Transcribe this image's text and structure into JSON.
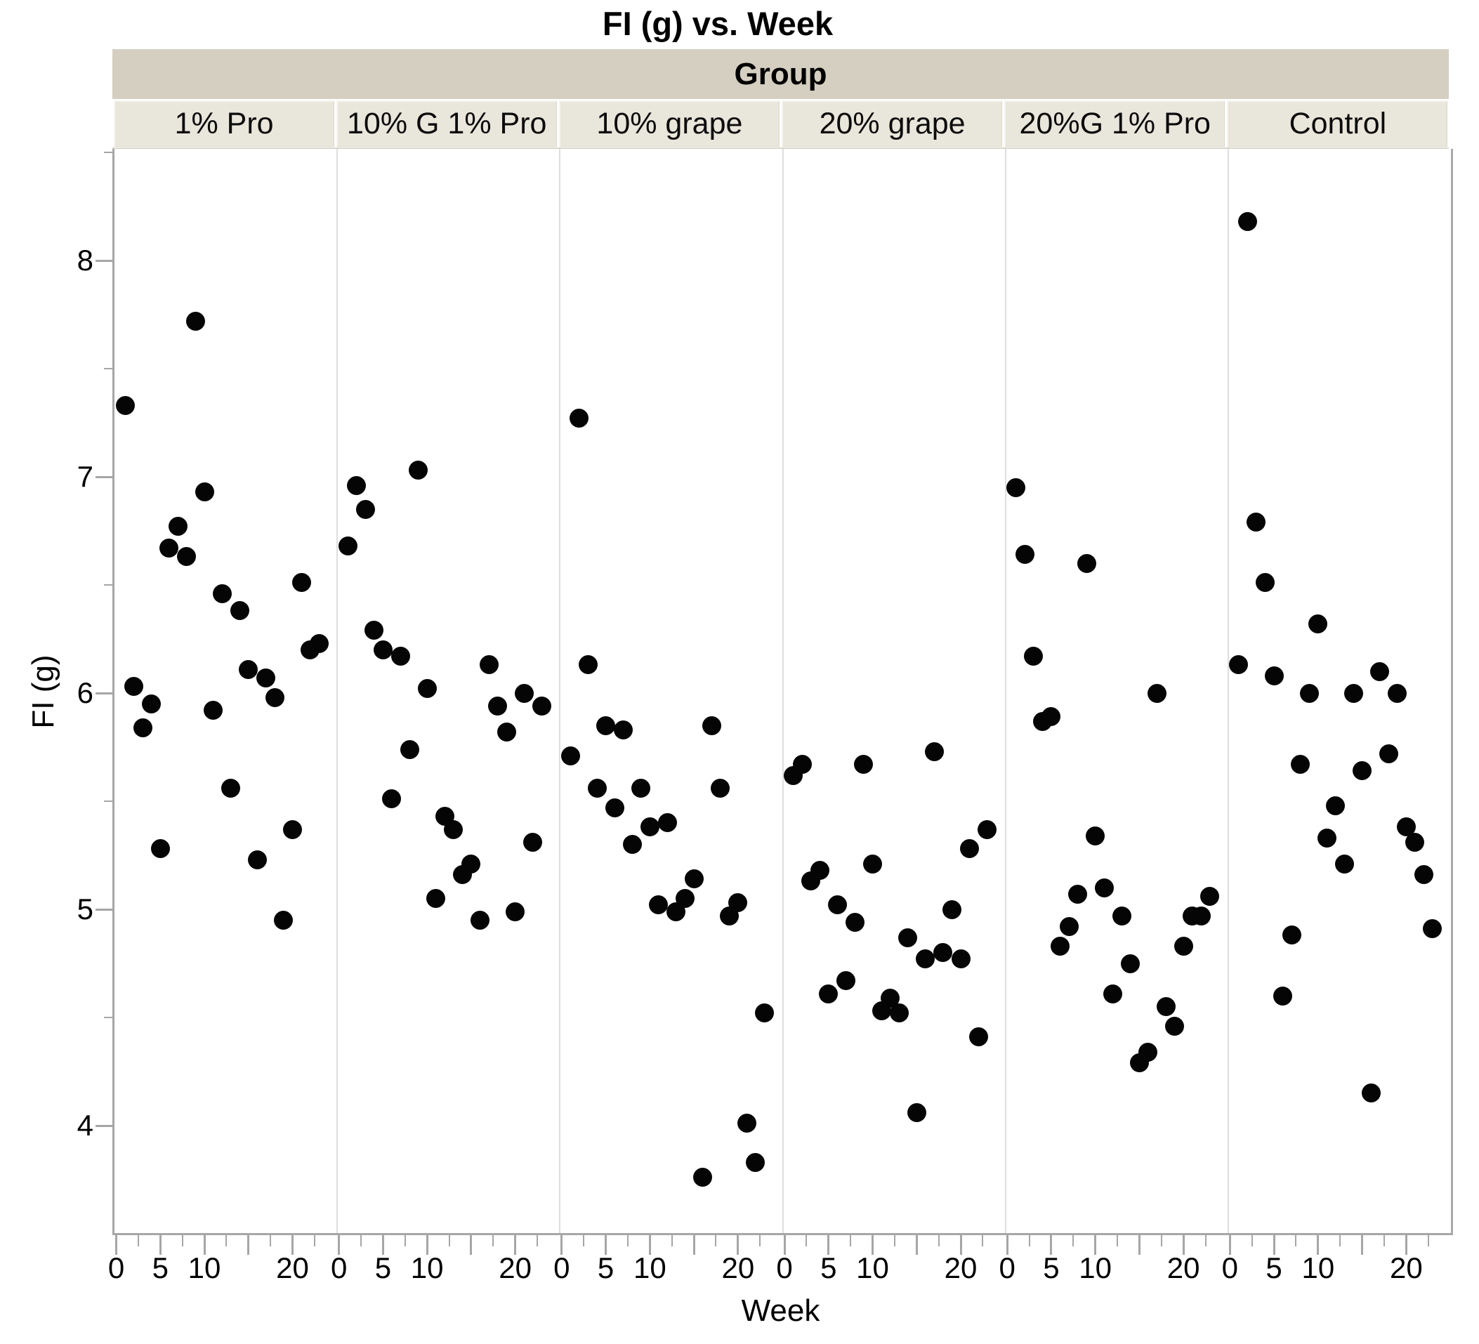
{
  "title": "FI (g) vs. Week",
  "header": {
    "group_label": "Group"
  },
  "axes": {
    "y": {
      "label": "FI (g)",
      "major_ticks": [
        8,
        7,
        6,
        5,
        4
      ],
      "minor_ticks": [
        8.5,
        7.5,
        6.5,
        5.5,
        4.5
      ]
    },
    "x": {
      "label": "Week",
      "major_ticks": [
        0,
        5,
        10,
        15,
        20
      ],
      "labeled_ticks": [
        0,
        5,
        10,
        20
      ],
      "minor_ticks": [
        2.5,
        7.5,
        12.5,
        17.5,
        22.5
      ]
    }
  },
  "colors": {
    "group_band": "#d5cfc1",
    "panel_cell": "#e9e6db",
    "axis_line": "#a6a6a6",
    "panel_separator": "#dedede",
    "marker": "#050505",
    "background": "#ffffff"
  },
  "chart_data": {
    "type": "scatter",
    "title": "FI (g) vs. Week",
    "xlabel": "Week",
    "ylabel": "FI (g)",
    "group_label": "Group",
    "legend_position": "none",
    "grid": false,
    "x_range_per_panel": [
      -0.2,
      25.2
    ],
    "y_range": [
      3.5,
      8.52
    ],
    "y_tick_labels": [
      "8",
      "7",
      "6",
      "5",
      "4"
    ],
    "x_tick_labels_per_panel": [
      "0",
      "5",
      "10",
      "20"
    ],
    "weeks": [
      1,
      2,
      3,
      4,
      5,
      6,
      7,
      8,
      9,
      10,
      11,
      12,
      13,
      14,
      15,
      16,
      17,
      18,
      19,
      20,
      21,
      22,
      23
    ],
    "groups": [
      {
        "name": "1% Pro",
        "fi": [
          7.33,
          6.03,
          5.84,
          5.95,
          5.28,
          6.67,
          6.77,
          6.63,
          7.72,
          6.93,
          5.92,
          6.46,
          5.56,
          6.38,
          6.11,
          5.23,
          6.07,
          5.98,
          4.95,
          5.37,
          6.51,
          6.2,
          6.23
        ]
      },
      {
        "name": "10% G 1% Pro",
        "fi": [
          6.68,
          6.96,
          6.85,
          6.29,
          6.2,
          5.51,
          6.17,
          5.74,
          7.03,
          6.02,
          5.05,
          5.43,
          5.37,
          5.16,
          5.21,
          4.95,
          6.13,
          5.94,
          5.82,
          4.99,
          6.0,
          5.31,
          5.94
        ]
      },
      {
        "name": "10% grape",
        "fi": [
          5.71,
          7.27,
          6.13,
          5.56,
          5.85,
          5.47,
          5.83,
          5.3,
          5.56,
          5.38,
          5.02,
          5.4,
          4.99,
          5.05,
          5.14,
          3.76,
          5.85,
          5.56,
          4.97,
          5.03,
          4.01,
          3.83,
          4.52
        ]
      },
      {
        "name": "20% grape",
        "fi": [
          5.62,
          5.67,
          5.13,
          5.18,
          4.61,
          5.02,
          4.67,
          4.94,
          5.67,
          5.21,
          4.53,
          4.59,
          4.52,
          4.87,
          4.06,
          4.77,
          5.73,
          4.8,
          5.0,
          4.77,
          5.28,
          4.41,
          5.37
        ]
      },
      {
        "name": "20%G 1% Pro",
        "fi": [
          6.95,
          6.64,
          6.17,
          5.87,
          5.89,
          4.83,
          4.92,
          5.07,
          6.6,
          5.34,
          5.1,
          4.61,
          4.97,
          4.75,
          4.29,
          4.34,
          6.0,
          4.55,
          4.46,
          4.83,
          4.97,
          4.97,
          5.06
        ]
      },
      {
        "name": "Control",
        "fi": [
          6.13,
          8.18,
          6.79,
          6.51,
          6.08,
          4.6,
          4.88,
          5.67,
          6.0,
          6.32,
          5.33,
          5.48,
          5.21,
          6.0,
          5.64,
          4.15,
          6.1,
          5.72,
          6.0,
          5.38,
          5.31,
          5.16,
          4.91
        ]
      }
    ]
  }
}
